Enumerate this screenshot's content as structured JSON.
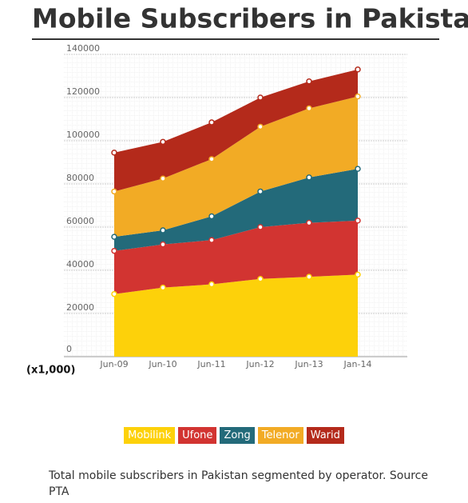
{
  "chart_data": {
    "type": "stacked_area",
    "title": "Mobile Subscribers in Pakistan",
    "unit_label": "(x1,000)",
    "categories": [
      "Jun-09",
      "Jun-10",
      "Jun-11",
      "Jun-12",
      "Jun-13",
      "Jan-14"
    ],
    "series": [
      {
        "name": "Mobilink",
        "color": "#fdd10a",
        "values": [
          29000,
          32000,
          33500,
          36000,
          37000,
          38000
        ]
      },
      {
        "name": "Ufone",
        "color": "#d23431",
        "values": [
          20000,
          20000,
          20500,
          24000,
          25000,
          25000
        ]
      },
      {
        "name": "Zong",
        "color": "#236a7a",
        "values": [
          6500,
          6500,
          11000,
          16500,
          21000,
          24000
        ]
      },
      {
        "name": "Telenor",
        "color": "#f2ab25",
        "values": [
          21000,
          24000,
          26500,
          30000,
          32000,
          33500
        ]
      },
      {
        "name": "Warid",
        "color": "#b42a1b",
        "values": [
          18000,
          17000,
          17000,
          13500,
          12500,
          12500
        ]
      }
    ],
    "ylim": [
      0,
      140000
    ],
    "yticks": [
      0,
      20000,
      40000,
      60000,
      80000,
      100000,
      120000,
      140000
    ],
    "grid": true,
    "caption": "Total mobile subscribers in Pakistan segmented by operator. Source PTA"
  }
}
